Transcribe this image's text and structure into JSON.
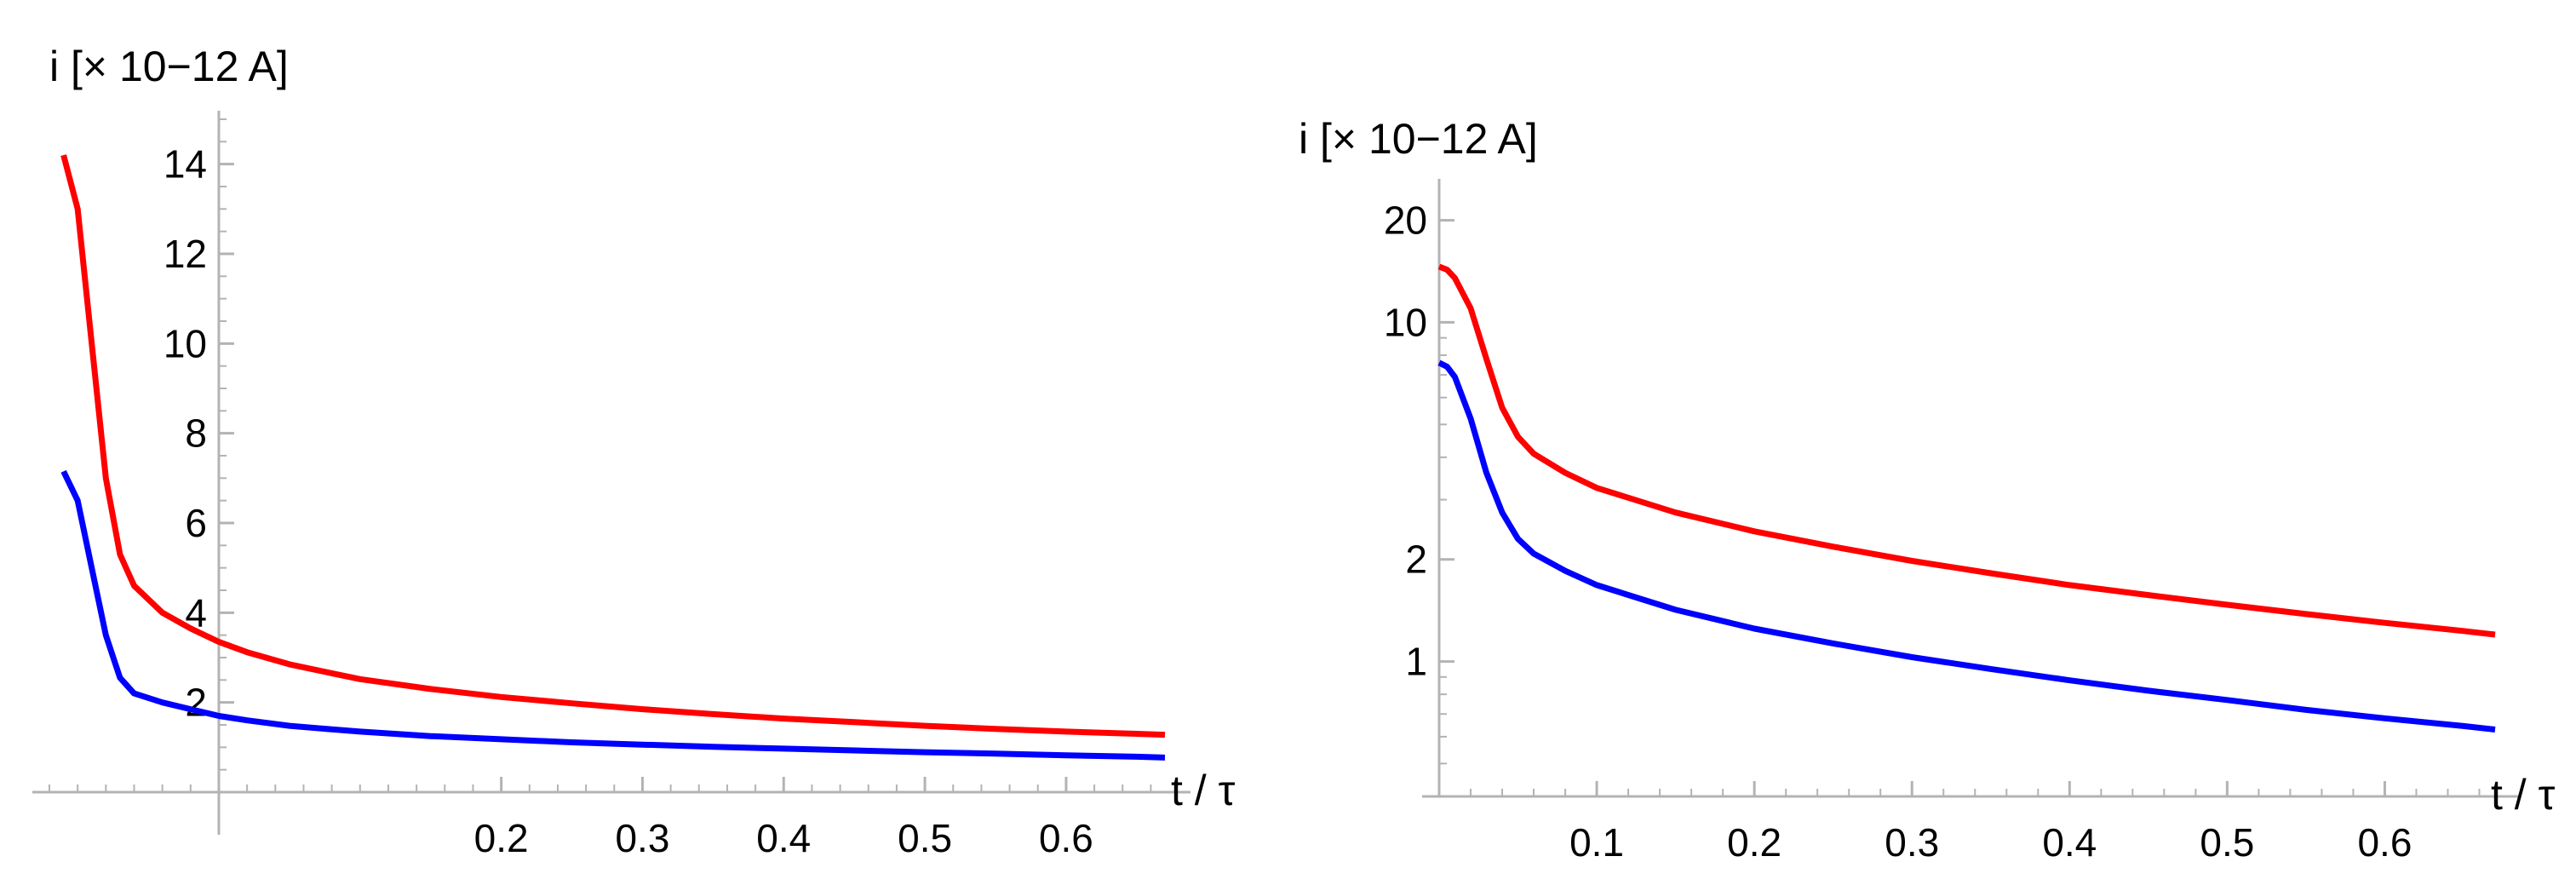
{
  "chart_data": [
    {
      "type": "line",
      "title": "",
      "xlabel": "t / τ",
      "ylabel": "i [× 10−12 A]",
      "y_scale": "linear",
      "xlim": [
        -0.12,
        0.67
      ],
      "ylim": [
        0,
        15
      ],
      "x_ticks": [
        0.2,
        0.3,
        0.4,
        0.5,
        0.6
      ],
      "x_tick_labels": [
        "0.2",
        "0.3",
        "0.4",
        "0.5",
        "0.6"
      ],
      "y_ticks": [
        2,
        4,
        6,
        8,
        10,
        12,
        14
      ],
      "y_tick_labels": [
        "2",
        "4",
        "6",
        "8",
        "10",
        "12",
        "14"
      ],
      "grid": false,
      "legend": "none",
      "series": [
        {
          "color": "#ff0000",
          "points": [
            [
              -0.11,
              14.2
            ],
            [
              -0.1,
              13.0
            ],
            [
              -0.09,
              10.0
            ],
            [
              -0.08,
              7.0
            ],
            [
              -0.07,
              5.3
            ],
            [
              -0.06,
              4.6
            ],
            [
              -0.04,
              4.0
            ],
            [
              -0.02,
              3.65
            ],
            [
              0.0,
              3.35
            ],
            [
              0.02,
              3.12
            ],
            [
              0.05,
              2.85
            ],
            [
              0.08,
              2.65
            ],
            [
              0.1,
              2.52
            ],
            [
              0.15,
              2.3
            ],
            [
              0.2,
              2.12
            ],
            [
              0.25,
              1.98
            ],
            [
              0.3,
              1.85
            ],
            [
              0.35,
              1.74
            ],
            [
              0.4,
              1.64
            ],
            [
              0.45,
              1.56
            ],
            [
              0.5,
              1.48
            ],
            [
              0.55,
              1.41
            ],
            [
              0.6,
              1.35
            ],
            [
              0.65,
              1.3
            ],
            [
              0.67,
              1.28
            ]
          ]
        },
        {
          "color": "#0000ff",
          "points": [
            [
              -0.11,
              7.15
            ],
            [
              -0.1,
              6.5
            ],
            [
              -0.09,
              5.0
            ],
            [
              -0.08,
              3.5
            ],
            [
              -0.07,
              2.55
            ],
            [
              -0.06,
              2.2
            ],
            [
              -0.04,
              2.0
            ],
            [
              -0.02,
              1.85
            ],
            [
              0.0,
              1.7
            ],
            [
              0.02,
              1.6
            ],
            [
              0.05,
              1.48
            ],
            [
              0.08,
              1.4
            ],
            [
              0.1,
              1.35
            ],
            [
              0.15,
              1.25
            ],
            [
              0.2,
              1.18
            ],
            [
              0.25,
              1.11
            ],
            [
              0.3,
              1.06
            ],
            [
              0.35,
              1.01
            ],
            [
              0.4,
              0.97
            ],
            [
              0.45,
              0.93
            ],
            [
              0.5,
              0.89
            ],
            [
              0.55,
              0.86
            ],
            [
              0.6,
              0.82
            ],
            [
              0.65,
              0.79
            ],
            [
              0.67,
              0.77
            ]
          ]
        }
      ]
    },
    {
      "type": "line",
      "title": "",
      "xlabel": "t / τ",
      "ylabel": "i [× 10−12 A]",
      "y_scale": "log",
      "xlim": [
        0.0,
        0.67
      ],
      "ylim": [
        0.4,
        25
      ],
      "x_ticks": [
        0.1,
        0.2,
        0.3,
        0.4,
        0.5,
        0.6
      ],
      "x_tick_labels": [
        "0.1",
        "0.2",
        "0.3",
        "0.4",
        "0.5",
        "0.6"
      ],
      "y_ticks": [
        1,
        2,
        10,
        20
      ],
      "y_tick_labels": [
        "1",
        "2",
        "10",
        "20"
      ],
      "grid": false,
      "legend": "none",
      "series": [
        {
          "color": "#ff0000",
          "points": [
            [
              0.0,
              14.6
            ],
            [
              0.005,
              14.3
            ],
            [
              0.01,
              13.5
            ],
            [
              0.02,
              11.0
            ],
            [
              0.03,
              7.8
            ],
            [
              0.04,
              5.6
            ],
            [
              0.05,
              4.6
            ],
            [
              0.06,
              4.1
            ],
            [
              0.08,
              3.6
            ],
            [
              0.1,
              3.25
            ],
            [
              0.15,
              2.75
            ],
            [
              0.2,
              2.42
            ],
            [
              0.25,
              2.18
            ],
            [
              0.3,
              1.98
            ],
            [
              0.35,
              1.82
            ],
            [
              0.4,
              1.68
            ],
            [
              0.45,
              1.57
            ],
            [
              0.5,
              1.47
            ],
            [
              0.55,
              1.38
            ],
            [
              0.6,
              1.3
            ],
            [
              0.65,
              1.23
            ],
            [
              0.67,
              1.2
            ]
          ]
        },
        {
          "color": "#0000ff",
          "points": [
            [
              0.0,
              7.6
            ],
            [
              0.005,
              7.4
            ],
            [
              0.01,
              6.9
            ],
            [
              0.02,
              5.2
            ],
            [
              0.03,
              3.6
            ],
            [
              0.04,
              2.75
            ],
            [
              0.05,
              2.3
            ],
            [
              0.06,
              2.08
            ],
            [
              0.08,
              1.85
            ],
            [
              0.1,
              1.68
            ],
            [
              0.15,
              1.42
            ],
            [
              0.2,
              1.25
            ],
            [
              0.25,
              1.13
            ],
            [
              0.3,
              1.03
            ],
            [
              0.35,
              0.95
            ],
            [
              0.4,
              0.88
            ],
            [
              0.45,
              0.82
            ],
            [
              0.5,
              0.77
            ],
            [
              0.55,
              0.72
            ],
            [
              0.6,
              0.68
            ],
            [
              0.65,
              0.645
            ],
            [
              0.67,
              0.63
            ]
          ]
        }
      ]
    }
  ]
}
